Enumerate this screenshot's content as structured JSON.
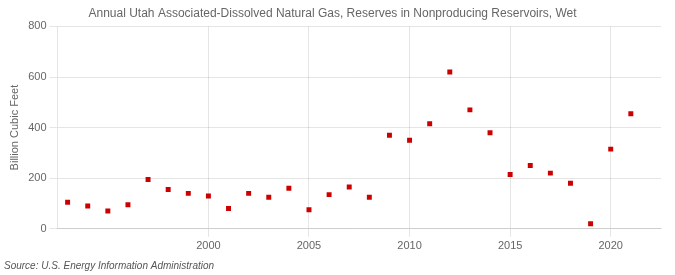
{
  "chart_data": {
    "type": "scatter",
    "title": "Annual Utah Associated-Dissolved Natural Gas, Reserves in Nonproducing Reservoirs, Wet",
    "ylabel": "Billion Cubic Feet",
    "annotations": [
      "Source: U.S. Energy Information Administration"
    ],
    "x": [
      1993,
      1994,
      1995,
      1996,
      1997,
      1998,
      1999,
      2000,
      2001,
      2002,
      2003,
      2004,
      2005,
      2006,
      2007,
      2008,
      2009,
      2010,
      2011,
      2012,
      2013,
      2014,
      2015,
      2016,
      2017,
      2018,
      2019,
      2020,
      2021
    ],
    "values": [
      105,
      90,
      70,
      95,
      195,
      155,
      140,
      130,
      80,
      140,
      125,
      160,
      75,
      135,
      165,
      125,
      370,
      350,
      415,
      620,
      470,
      380,
      215,
      250,
      220,
      180,
      20,
      315,
      455
    ],
    "color": "#cc0000",
    "marker": "square",
    "ylim": [
      0,
      800
    ],
    "yticks": [
      0,
      200,
      400,
      600,
      800
    ],
    "xlim": [
      1992.5,
      2022.5
    ],
    "xticks": [
      2000,
      2005,
      2010,
      2015,
      2020
    ],
    "grid": true
  }
}
